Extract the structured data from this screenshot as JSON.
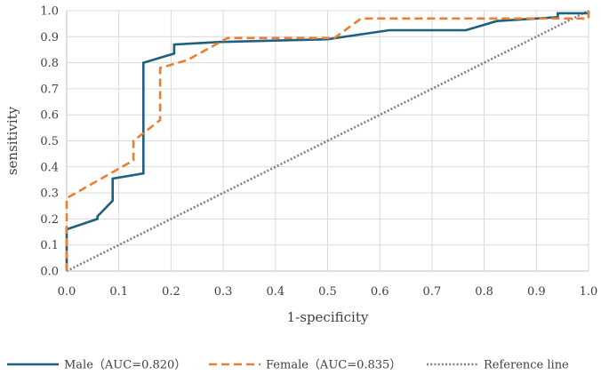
{
  "chart_data": {
    "type": "line",
    "title": "",
    "xlabel": "1-specificity",
    "ylabel": "sensitivity",
    "xlim": [
      0,
      1
    ],
    "ylim": [
      0,
      1
    ],
    "x_ticks": [
      "0.0",
      "0.1",
      "0.2",
      "0.3",
      "0.4",
      "0.5",
      "0.6",
      "0.7",
      "0.8",
      "0.9",
      "1.0"
    ],
    "y_ticks": [
      "0.0",
      "0.1",
      "0.2",
      "0.3",
      "0.4",
      "0.5",
      "0.6",
      "0.7",
      "0.8",
      "0.9",
      "1.0"
    ],
    "grid": true,
    "legend_position": "bottom",
    "series": [
      {
        "name": "Male（AUC=0.820）",
        "color": "#1f5f7f",
        "style": "solid",
        "x": [
          0.0,
          0.0,
          0.0,
          0.059,
          0.059,
          0.088,
          0.088,
          0.147,
          0.147,
          0.206,
          0.206,
          0.294,
          0.5,
          0.618,
          0.765,
          0.824,
          0.941,
          0.941,
          1.0,
          1.0
        ],
        "y": [
          0.0,
          0.1,
          0.16,
          0.2,
          0.21,
          0.27,
          0.355,
          0.375,
          0.8,
          0.835,
          0.87,
          0.88,
          0.89,
          0.925,
          0.925,
          0.96,
          0.975,
          0.99,
          0.99,
          1.0
        ]
      },
      {
        "name": "Female（AUC=0.835）",
        "color": "#ed7d31",
        "style": "dashed",
        "x": [
          0.0,
          0.0,
          0.128,
          0.128,
          0.179,
          0.179,
          0.231,
          0.308,
          0.513,
          0.564,
          0.923,
          1.0,
          1.0
        ],
        "y": [
          0.0,
          0.28,
          0.425,
          0.5,
          0.58,
          0.78,
          0.81,
          0.895,
          0.895,
          0.97,
          0.97,
          0.97,
          1.0
        ]
      },
      {
        "name": "Reference line",
        "color": "#808080",
        "style": "dotted",
        "x": [
          0,
          1
        ],
        "y": [
          0,
          1
        ]
      }
    ]
  }
}
